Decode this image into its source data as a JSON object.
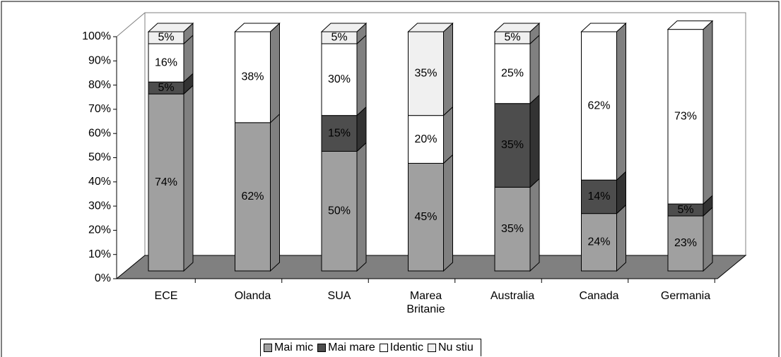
{
  "chart_data": {
    "type": "bar3d_stacked",
    "categories": [
      "ECE",
      "Olanda",
      "SUA",
      "Marea Britanie",
      "Australia",
      "Canada",
      "Germania"
    ],
    "series": [
      {
        "name": "Mai mic",
        "color": "#a0a0a0",
        "values": [
          74,
          62,
          50,
          45,
          35,
          24,
          23
        ],
        "value_labels": [
          "74%",
          "62%",
          "50%",
          "45%",
          "35%",
          "24%",
          "23%"
        ]
      },
      {
        "name": "Mai mare",
        "color": "#4d4d4d",
        "values": [
          5,
          null,
          15,
          null,
          35,
          14,
          5
        ],
        "value_labels": [
          "5%",
          null,
          "15%",
          null,
          "35%",
          "14%",
          "5%"
        ]
      },
      {
        "name": "Identic",
        "color": "#ffffff",
        "values": [
          16,
          38,
          30,
          20,
          25,
          62,
          73
        ],
        "value_labels": [
          "16%",
          "38%",
          "30%",
          "20%",
          "25%",
          "62%",
          "73%"
        ]
      },
      {
        "name": "Nu stiu",
        "color": "#f0f0f0",
        "values": [
          5,
          null,
          5,
          35,
          5,
          null,
          null
        ],
        "value_labels": [
          "5%",
          null,
          "5%",
          "35%",
          "5%",
          null,
          null
        ]
      }
    ],
    "ylim": [
      0,
      100
    ],
    "yticks": [
      {
        "value": 0,
        "label": "0%"
      },
      {
        "value": 10,
        "label": "10%"
      },
      {
        "value": 20,
        "label": "20%"
      },
      {
        "value": 30,
        "label": "30%"
      },
      {
        "value": 40,
        "label": "40%"
      },
      {
        "value": 50,
        "label": "50%"
      },
      {
        "value": 60,
        "label": "60%"
      },
      {
        "value": 70,
        "label": "70%"
      },
      {
        "value": 80,
        "label": "80%"
      },
      {
        "value": 90,
        "label": "90%"
      },
      {
        "value": 100,
        "label": "100%"
      }
    ],
    "legend": "bottom"
  }
}
